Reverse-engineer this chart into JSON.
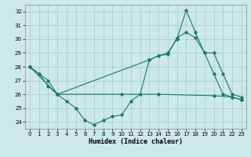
{
  "xlabel": "Humidex (Indice chaleur)",
  "line_color": "#1a7a6a",
  "bg_color": "#cce8e8",
  "grid_color": "#aacfcf",
  "xlim": [
    -0.5,
    23.5
  ],
  "ylim": [
    23.5,
    32.5
  ],
  "yticks": [
    24,
    25,
    26,
    27,
    28,
    29,
    30,
    31,
    32
  ],
  "xticks": [
    0,
    1,
    2,
    3,
    4,
    5,
    6,
    7,
    8,
    9,
    10,
    11,
    12,
    13,
    14,
    15,
    16,
    17,
    18,
    19,
    20,
    21,
    22,
    23
  ],
  "line1_x": [
    0,
    1,
    2,
    3,
    4,
    5,
    6,
    7,
    8,
    9,
    10,
    11,
    12,
    13,
    14,
    15,
    16,
    17,
    18,
    19,
    20,
    21,
    22,
    23
  ],
  "line1_y": [
    28.0,
    27.5,
    26.6,
    26.0,
    25.5,
    25.0,
    24.1,
    23.8,
    24.1,
    24.4,
    24.5,
    25.5,
    26.0,
    28.5,
    28.8,
    29.0,
    30.0,
    32.1,
    30.5,
    29.0,
    27.5,
    26.0,
    25.8,
    25.6
  ],
  "line2_x": [
    0,
    2,
    3,
    13,
    14,
    15,
    16,
    17,
    18,
    19,
    20,
    21,
    22,
    23
  ],
  "line2_y": [
    28.0,
    27.0,
    26.0,
    28.5,
    28.8,
    28.9,
    30.1,
    30.5,
    30.1,
    29.0,
    29.0,
    27.5,
    26.0,
    25.8
  ],
  "line3_x": [
    0,
    3,
    10,
    14,
    20,
    22,
    23
  ],
  "line3_y": [
    28.0,
    26.0,
    26.0,
    26.0,
    25.9,
    25.8,
    25.6
  ]
}
